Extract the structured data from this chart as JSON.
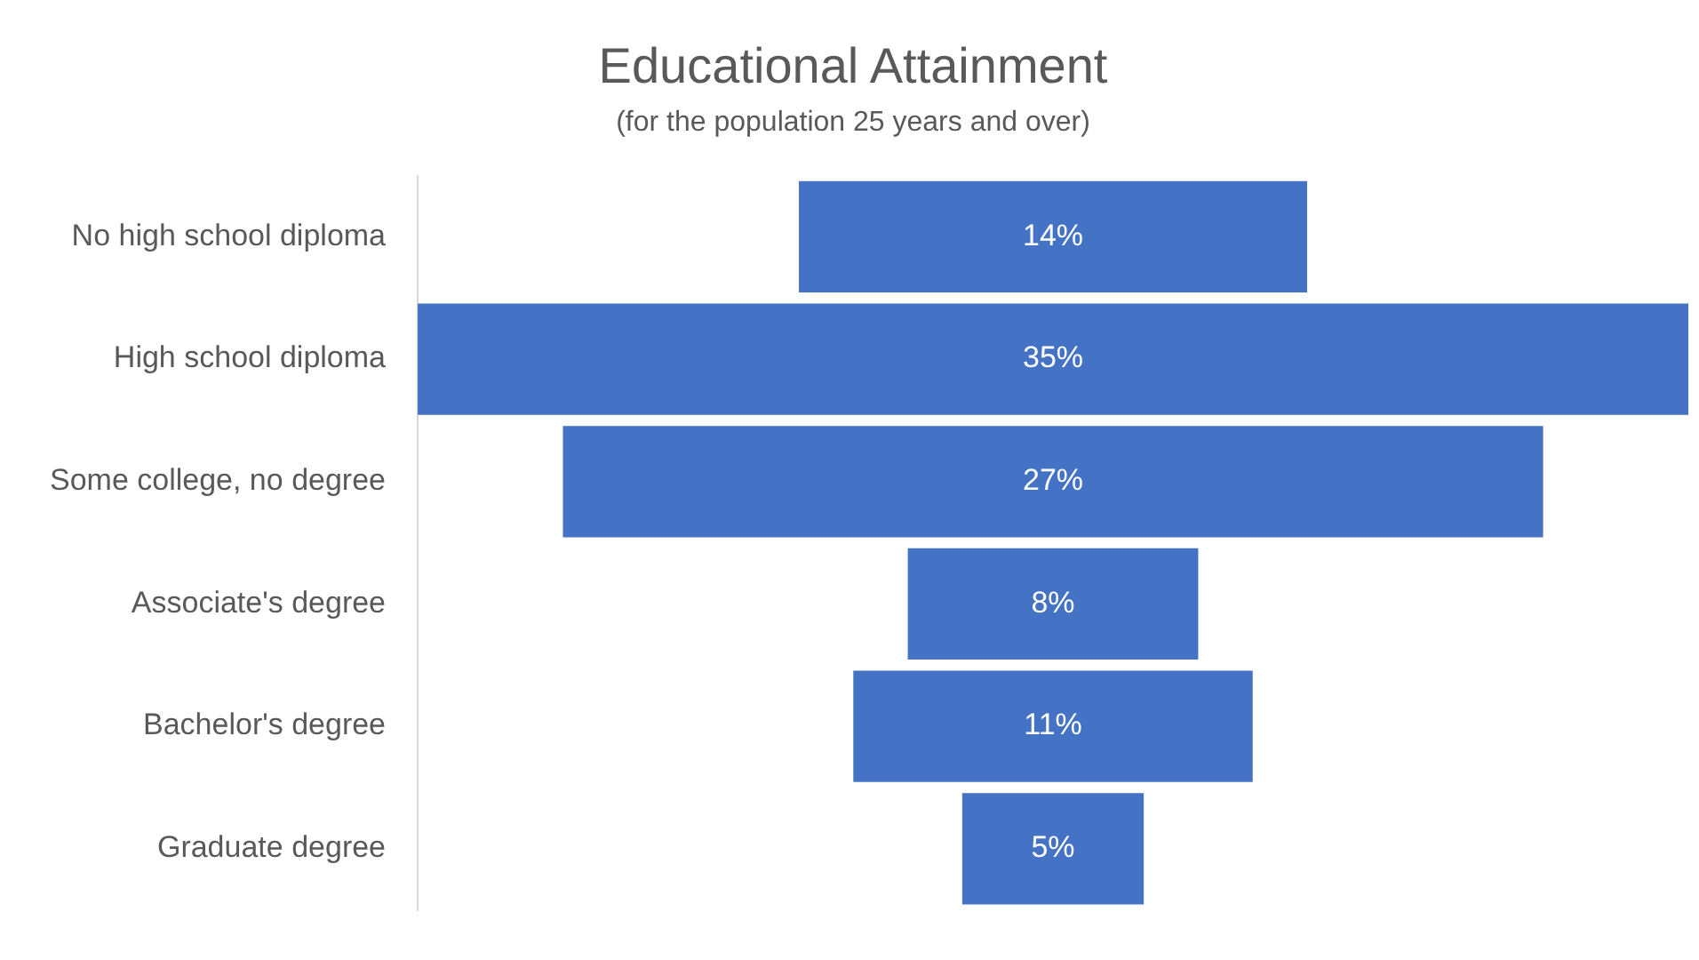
{
  "chart_data": {
    "type": "other",
    "title": "Educational Attainment",
    "subtitle": "(for the population 25 years and over)",
    "categories": [
      "No high school diploma",
      "High school diploma",
      "Some college, no degree",
      "Associate's degree",
      "Bachelor's degree",
      "Graduate degree"
    ],
    "values": [
      14,
      35,
      27,
      8,
      11,
      5
    ],
    "value_labels": [
      "14%",
      "35%",
      "27%",
      "8%",
      "11%",
      "5%"
    ],
    "color": "#4472c4"
  }
}
